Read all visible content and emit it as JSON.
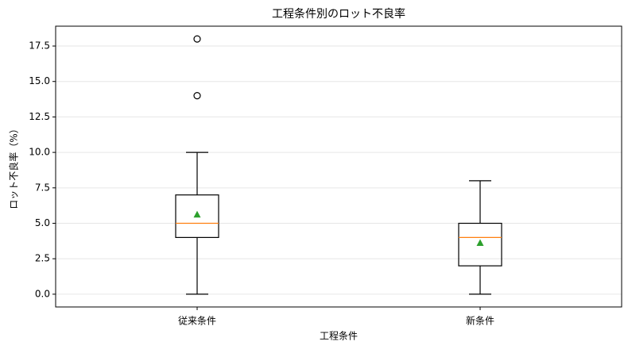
{
  "chart_data": {
    "type": "box",
    "title": "工程条件別のロット不良率",
    "x_label": "工程条件",
    "y_label": "ロット不良率（%）",
    "categories": [
      "従来条件",
      "新条件"
    ],
    "boxes": [
      {
        "min": 0,
        "q1": 4,
        "median": 5,
        "q3": 7,
        "max": 10,
        "mean": 5.6,
        "outliers": [
          14,
          18
        ]
      },
      {
        "min": 0,
        "q1": 2,
        "median": 4,
        "q3": 5,
        "max": 8,
        "mean": 3.6,
        "outliers": []
      }
    ],
    "box_color": "#000000",
    "median_color": "#ff7f0e",
    "mean_color": "#2ca02c",
    "ylim": [
      -0.9,
      18.9
    ],
    "yticks": [
      {
        "value": 0,
        "label": "0.0"
      },
      2.5,
      {
        "value": 5,
        "label": "5.0"
      },
      7.5,
      {
        "value": 10,
        "label": "10.0"
      },
      12.5,
      {
        "value": 15,
        "label": "15.0"
      },
      17.5
    ],
    "grid": true
  }
}
